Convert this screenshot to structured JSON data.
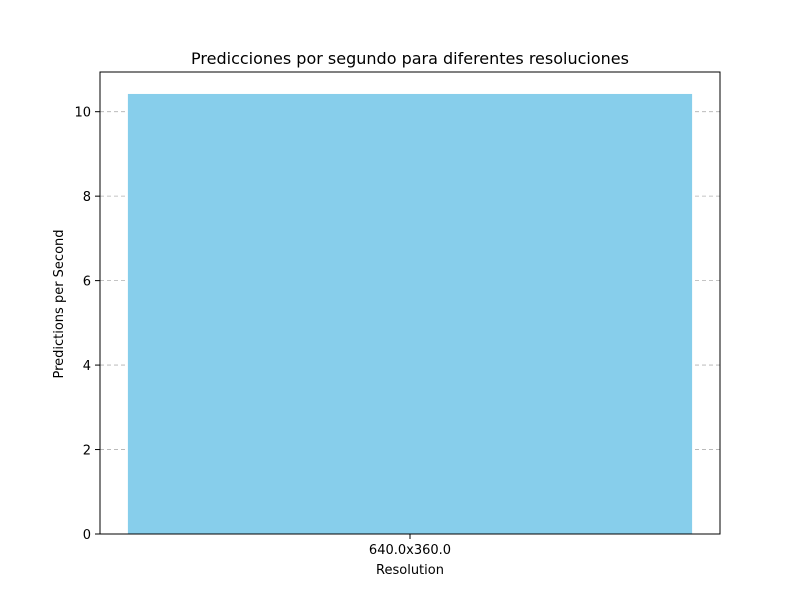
{
  "chart_data": {
    "type": "bar",
    "title": "Predicciones por segundo para diferentes resoluciones",
    "xlabel": "Resolution",
    "ylabel": "Predictions per Second",
    "categories": [
      "640.0x360.0"
    ],
    "values": [
      10.42
    ],
    "ylim": [
      0,
      10.94
    ],
    "yticks": [
      0,
      2,
      4,
      6,
      8,
      10
    ],
    "grid": "y-dashed",
    "bar_color": "#87ceeb",
    "grid_color": "#b0b0b0"
  }
}
